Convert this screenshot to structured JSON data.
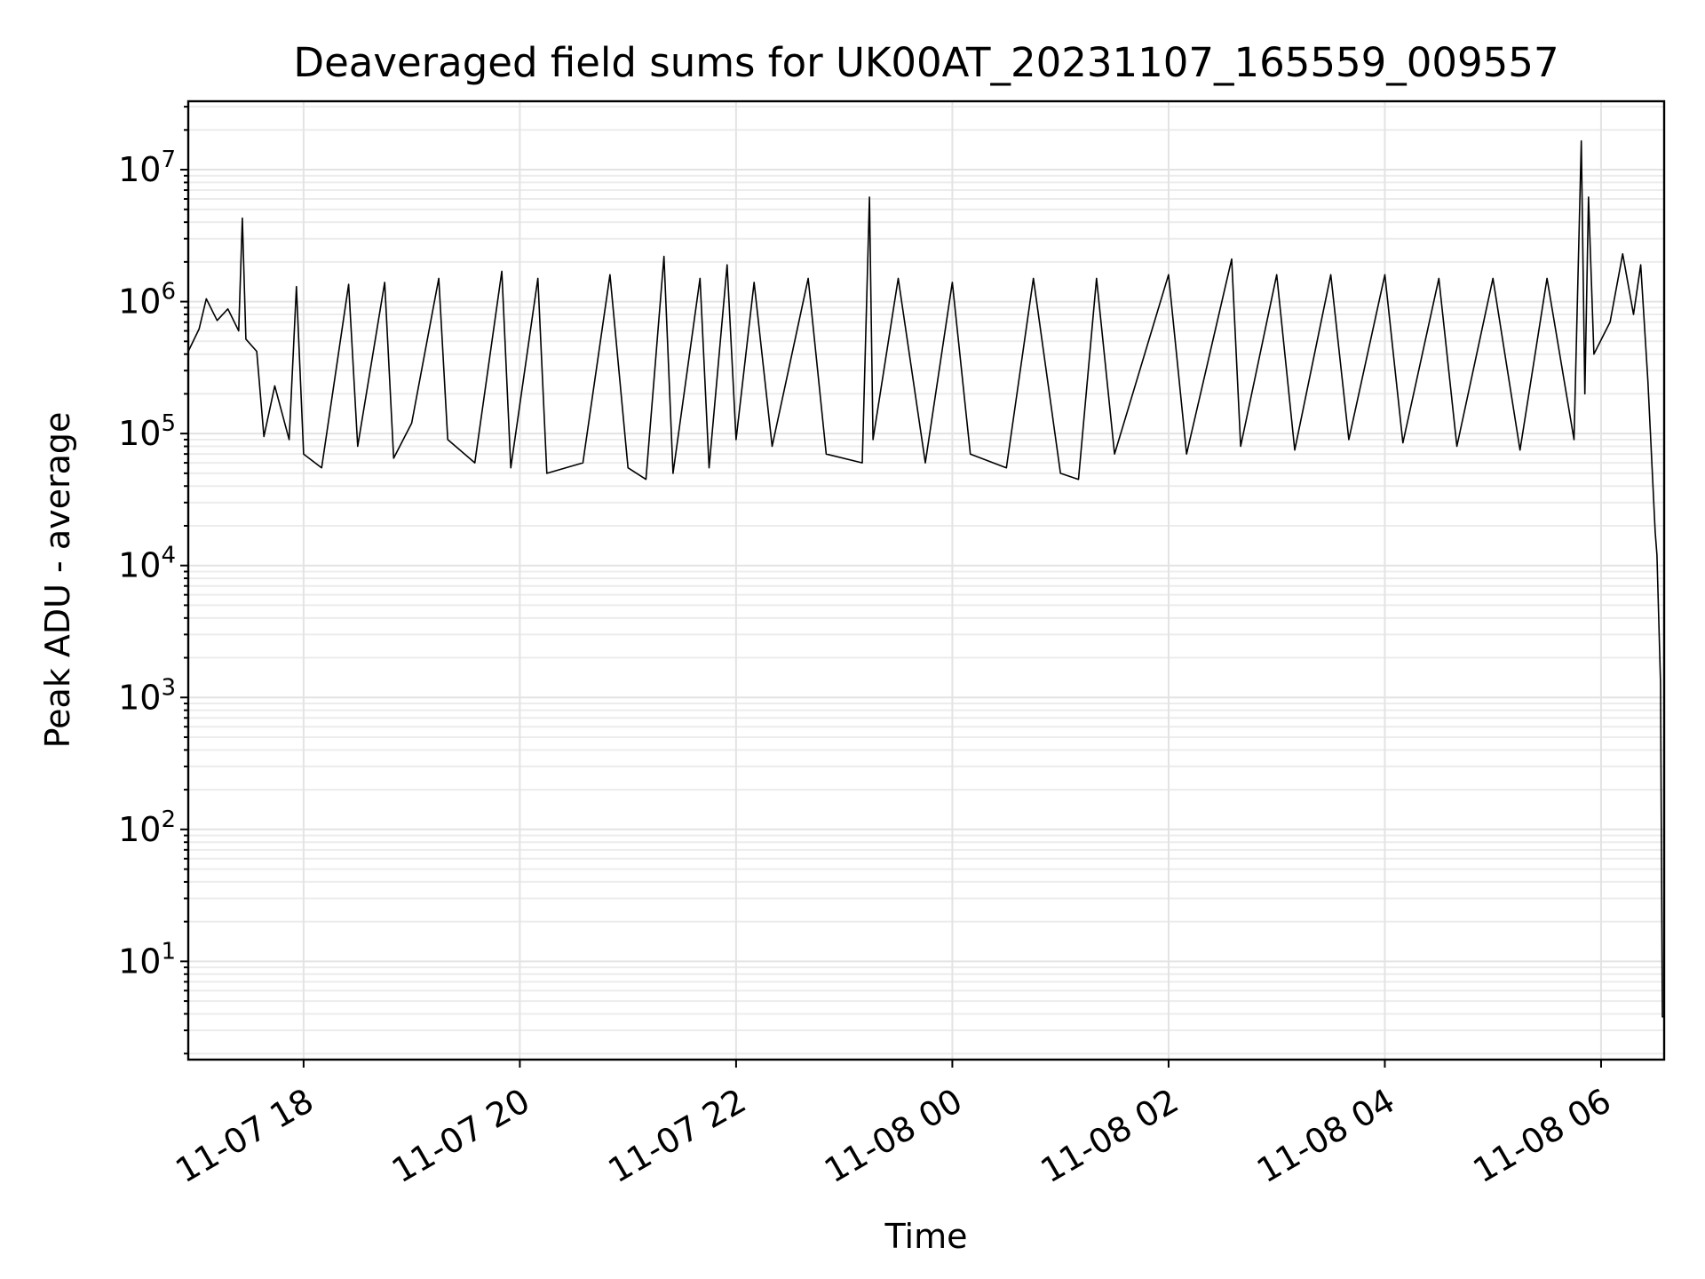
{
  "chart_data": {
    "type": "line",
    "title": "Deaveraged field sums for UK00AT_20231107_165559_009557",
    "xlabel": "Time",
    "ylabel": "Peak ADU - average",
    "yscale": "log",
    "ylim": [
      1.8,
      33000000
    ],
    "xlim": [
      "2023-11-07 16:56",
      "2023-11-08 06:35"
    ],
    "grid": true,
    "x_ticks": [
      "2023-11-07 18:00",
      "2023-11-07 20:00",
      "2023-11-07 22:00",
      "2023-11-08 00:00",
      "2023-11-08 02:00",
      "2023-11-08 04:00",
      "2023-11-08 06:00"
    ],
    "x_tick_labels": [
      "11-07 18",
      "11-07 20",
      "11-07 22",
      "11-08 00",
      "11-08 02",
      "11-08 04",
      "11-08 06"
    ],
    "y_tick_exponents": [
      "1",
      "2",
      "3",
      "4",
      "5",
      "6",
      "7"
    ],
    "y_tick_base": "10",
    "series": [
      {
        "color": "#000000",
        "points": [
          [
            "2023-11-07 16:56",
            420000
          ],
          [
            "2023-11-07 17:02",
            620000
          ],
          [
            "2023-11-07 17:06",
            1050000
          ],
          [
            "2023-11-07 17:12",
            720000
          ],
          [
            "2023-11-07 17:18",
            880000
          ],
          [
            "2023-11-07 17:24",
            600000
          ],
          [
            "2023-11-07 17:26",
            4300000
          ],
          [
            "2023-11-07 17:28",
            520000
          ],
          [
            "2023-11-07 17:34",
            420000
          ],
          [
            "2023-11-07 17:38",
            95000
          ],
          [
            "2023-11-07 17:44",
            230000
          ],
          [
            "2023-11-07 17:52",
            90000
          ],
          [
            "2023-11-07 17:56",
            1300000
          ],
          [
            "2023-11-07 18:00",
            70000
          ],
          [
            "2023-11-07 18:10",
            55000
          ],
          [
            "2023-11-07 18:25",
            1350000
          ],
          [
            "2023-11-07 18:30",
            80000
          ],
          [
            "2023-11-07 18:45",
            1400000
          ],
          [
            "2023-11-07 18:50",
            65000
          ],
          [
            "2023-11-07 19:00",
            120000
          ],
          [
            "2023-11-07 19:15",
            1500000
          ],
          [
            "2023-11-07 19:20",
            90000
          ],
          [
            "2023-11-07 19:35",
            60000
          ],
          [
            "2023-11-07 19:50",
            1700000
          ],
          [
            "2023-11-07 19:55",
            55000
          ],
          [
            "2023-11-07 20:10",
            1500000
          ],
          [
            "2023-11-07 20:15",
            50000
          ],
          [
            "2023-11-07 20:35",
            60000
          ],
          [
            "2023-11-07 20:50",
            1600000
          ],
          [
            "2023-11-07 21:00",
            55000
          ],
          [
            "2023-11-07 21:10",
            45000
          ],
          [
            "2023-11-07 21:20",
            2200000
          ],
          [
            "2023-11-07 21:25",
            50000
          ],
          [
            "2023-11-07 21:40",
            1500000
          ],
          [
            "2023-11-07 21:45",
            55000
          ],
          [
            "2023-11-07 21:55",
            1900000
          ],
          [
            "2023-11-07 22:00",
            90000
          ],
          [
            "2023-11-07 22:10",
            1400000
          ],
          [
            "2023-11-07 22:20",
            80000
          ],
          [
            "2023-11-07 22:40",
            1500000
          ],
          [
            "2023-11-07 22:50",
            70000
          ],
          [
            "2023-11-07 23:10",
            60000
          ],
          [
            "2023-11-07 23:14",
            6200000
          ],
          [
            "2023-11-07 23:16",
            90000
          ],
          [
            "2023-11-07 23:30",
            1500000
          ],
          [
            "2023-11-07 23:45",
            60000
          ],
          [
            "2023-11-08 00:00",
            1400000
          ],
          [
            "2023-11-08 00:10",
            70000
          ],
          [
            "2023-11-08 00:30",
            55000
          ],
          [
            "2023-11-08 00:45",
            1500000
          ],
          [
            "2023-11-08 01:00",
            50000
          ],
          [
            "2023-11-08 01:10",
            45000
          ],
          [
            "2023-11-08 01:20",
            1500000
          ],
          [
            "2023-11-08 01:30",
            70000
          ],
          [
            "2023-11-08 02:00",
            1600000
          ],
          [
            "2023-11-08 02:10",
            70000
          ],
          [
            "2023-11-08 02:35",
            2100000
          ],
          [
            "2023-11-08 02:40",
            80000
          ],
          [
            "2023-11-08 03:00",
            1600000
          ],
          [
            "2023-11-08 03:10",
            75000
          ],
          [
            "2023-11-08 03:30",
            1600000
          ],
          [
            "2023-11-08 03:40",
            90000
          ],
          [
            "2023-11-08 04:00",
            1600000
          ],
          [
            "2023-11-08 04:10",
            85000
          ],
          [
            "2023-11-08 04:30",
            1500000
          ],
          [
            "2023-11-08 04:40",
            80000
          ],
          [
            "2023-11-08 05:00",
            1500000
          ],
          [
            "2023-11-08 05:15",
            75000
          ],
          [
            "2023-11-08 05:30",
            1500000
          ],
          [
            "2023-11-08 05:45",
            90000
          ],
          [
            "2023-11-08 05:49",
            16500000
          ],
          [
            "2023-11-08 05:51",
            200000
          ],
          [
            "2023-11-08 05:53",
            6200000
          ],
          [
            "2023-11-08 05:56",
            400000
          ],
          [
            "2023-11-08 06:05",
            700000
          ],
          [
            "2023-11-08 06:12",
            2300000
          ],
          [
            "2023-11-08 06:18",
            800000
          ],
          [
            "2023-11-08 06:22",
            1900000
          ],
          [
            "2023-11-08 06:26",
            250000
          ],
          [
            "2023-11-08 06:30",
            18000
          ],
          [
            "2023-11-08 06:31",
            12000
          ],
          [
            "2023-11-08 06:33",
            1300
          ],
          [
            "2023-11-08 06:34",
            3.8
          ],
          [
            "2023-11-08 06:35",
            3.8
          ]
        ]
      }
    ]
  }
}
